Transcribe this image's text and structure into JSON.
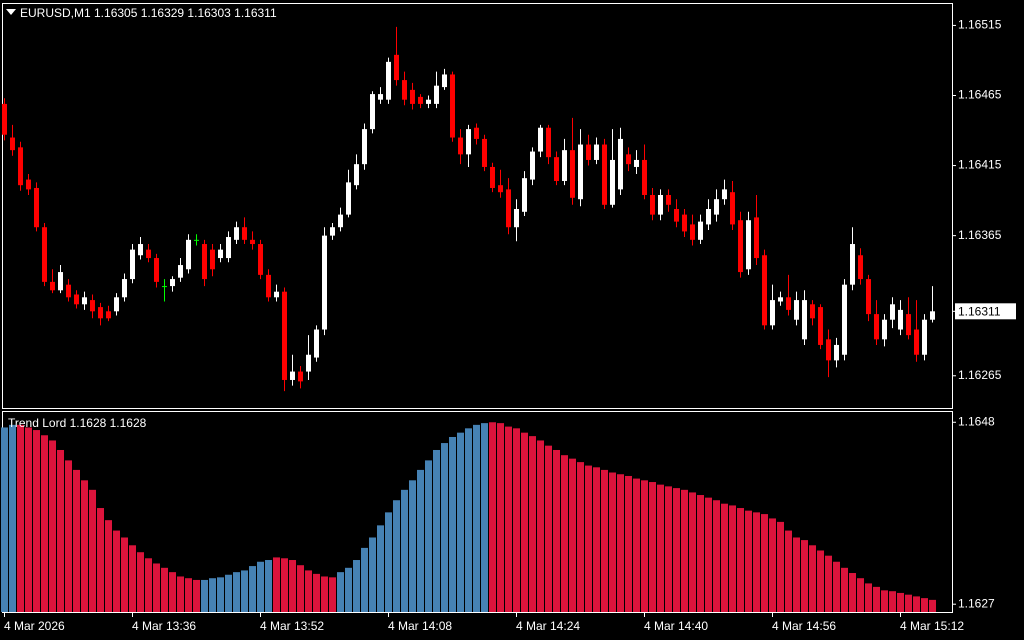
{
  "chart_data": [
    {
      "type": "candlestick",
      "title": "EURUSD,M1  1.16305 1.16329 1.16303 1.16311",
      "categories": [
        "4 Mar 2026",
        null,
        null,
        null,
        null,
        null,
        null,
        null,
        null,
        null,
        null,
        null,
        null,
        null,
        null,
        null,
        "4 Mar 13:36",
        null,
        null,
        null,
        null,
        null,
        null,
        null,
        null,
        null,
        null,
        null,
        null,
        null,
        null,
        null,
        "4 Mar 13:52",
        null,
        null,
        null,
        null,
        null,
        null,
        null,
        null,
        null,
        null,
        null,
        null,
        null,
        null,
        null,
        "4 Mar 14:08",
        null,
        null,
        null,
        null,
        null,
        null,
        null,
        null,
        null,
        null,
        null,
        null,
        null,
        null,
        null,
        "4 Mar 14:24",
        null,
        null,
        null,
        null,
        null,
        null,
        null,
        null,
        null,
        null,
        null,
        null,
        null,
        null,
        null,
        "4 Mar 14:40",
        null,
        null,
        null,
        null,
        null,
        null,
        null,
        null,
        null,
        null,
        null,
        null,
        null,
        null,
        null,
        "4 Mar 14:56",
        null,
        null,
        null,
        null,
        null,
        null,
        null,
        null,
        null,
        null,
        null,
        null,
        null,
        null,
        null,
        "4 Mar 15:12",
        null,
        null,
        null,
        null
      ],
      "open": [
        1.16459,
        1.16435,
        1.16428,
        1.16405,
        1.16399,
        1.16371,
        1.16332,
        1.16326,
        1.1633,
        1.16323,
        1.16316,
        1.16319,
        1.16314,
        1.16311,
        1.16311,
        1.16321,
        1.16334,
        1.16351,
        1.16355,
        1.16349,
        1.16329,
        1.16329,
        1.16335,
        1.16341,
        1.16362,
        1.16359,
        1.16355,
        1.16349,
        1.16349,
        1.16362,
        1.16371,
        1.16362,
        1.16359,
        1.16337,
        1.16321,
        1.16325,
        1.16262,
        1.16268,
        1.16268,
        1.16278,
        1.16298,
        1.16365,
        1.16371,
        1.1638,
        1.16401,
        1.16416,
        1.16441,
        1.16462,
        1.16462,
        1.16494,
        1.16476,
        1.16469,
        1.16464,
        1.16459,
        1.16459,
        1.16471,
        1.1648,
        1.16435,
        1.16423,
        1.16442,
        1.16434,
        1.16414,
        1.16401,
        1.16398,
        1.16371,
        1.16382,
        1.16405,
        1.16425,
        1.16442,
        1.16421,
        1.16404,
        1.16426,
        1.16391,
        1.1643,
        1.16419,
        1.1643,
        1.16387,
        1.16398,
        1.16423,
        1.16414,
        1.16419,
        1.16394,
        1.1638,
        1.16394,
        1.16384,
        1.1638,
        1.16373,
        1.16362,
        1.16373,
        1.1638,
        1.16391,
        1.16396,
        1.16376,
        1.16341,
        1.16378,
        1.16351,
        1.16301,
        1.16318,
        1.16321,
        1.16305,
        1.16291,
        1.16316,
        1.16314,
        1.16291,
        1.16276,
        1.1628,
        1.1633,
        1.16351,
        1.16334,
        1.16309,
        1.16291,
        1.16305,
        1.16298,
        1.16309,
        1.16298,
        1.1628,
        1.16305
      ],
      "high": [
        1.16463,
        1.16444,
        1.16432,
        1.16409,
        1.16403,
        1.16374,
        1.16341,
        1.16344,
        1.16334,
        1.16326,
        1.16325,
        1.16323,
        1.16317,
        1.16315,
        1.16324,
        1.16338,
        1.16359,
        1.16364,
        1.16359,
        1.16352,
        1.16334,
        1.16336,
        1.16349,
        1.16366,
        1.16366,
        1.16362,
        1.16359,
        1.16359,
        1.16368,
        1.16375,
        1.16378,
        1.16368,
        1.16362,
        1.16341,
        1.1633,
        1.16328,
        1.1628,
        1.16272,
        1.16294,
        1.16301,
        1.16371,
        1.16374,
        1.16385,
        1.16412,
        1.16423,
        1.16445,
        1.16468,
        1.16471,
        1.16492,
        1.16514,
        1.16482,
        1.16474,
        1.16466,
        1.16465,
        1.16482,
        1.16484,
        1.16482,
        1.16441,
        1.16444,
        1.16445,
        1.16437,
        1.16417,
        1.16412,
        1.16406,
        1.16391,
        1.16411,
        1.16428,
        1.16444,
        1.16444,
        1.16425,
        1.16434,
        1.16449,
        1.16441,
        1.16437,
        1.16435,
        1.16434,
        1.16441,
        1.16442,
        1.16428,
        1.16426,
        1.1643,
        1.16399,
        1.16398,
        1.16398,
        1.16391,
        1.16384,
        1.1638,
        1.1638,
        1.16391,
        1.16398,
        1.16405,
        1.16404,
        1.16382,
        1.16382,
        1.16394,
        1.16355,
        1.1633,
        1.16325,
        1.16337,
        1.16325,
        1.16326,
        1.16319,
        1.16316,
        1.16298,
        1.16292,
        1.16334,
        1.16371,
        1.16356,
        1.16337,
        1.16319,
        1.16309,
        1.16321,
        1.16319,
        1.16321,
        1.16319,
        1.16309,
        1.16329
      ],
      "low": [
        1.16433,
        1.16422,
        1.16397,
        1.16394,
        1.16368,
        1.16329,
        1.16324,
        1.16324,
        1.16318,
        1.16313,
        1.16312,
        1.16306,
        1.16301,
        1.16304,
        1.16308,
        1.16318,
        1.16331,
        1.16348,
        1.16346,
        1.16328,
        1.16318,
        1.16325,
        1.16332,
        1.16338,
        1.16358,
        1.16329,
        1.16336,
        1.16346,
        1.16346,
        1.16359,
        1.16359,
        1.16355,
        1.16334,
        1.16318,
        1.16318,
        1.16254,
        1.16258,
        1.16256,
        1.16262,
        1.16275,
        1.16294,
        1.16362,
        1.16368,
        1.16378,
        1.16398,
        1.16412,
        1.16438,
        1.16459,
        1.16459,
        1.16472,
        1.16458,
        1.16455,
        1.16456,
        1.16456,
        1.16456,
        1.16469,
        1.16432,
        1.16416,
        1.16414,
        1.1643,
        1.16411,
        1.16396,
        1.16392,
        1.16366,
        1.16361,
        1.16379,
        1.16401,
        1.16421,
        1.16416,
        1.16401,
        1.16401,
        1.16387,
        1.16386,
        1.16415,
        1.16416,
        1.16384,
        1.16385,
        1.16394,
        1.16411,
        1.16409,
        1.16391,
        1.16376,
        1.16376,
        1.16382,
        1.16371,
        1.16364,
        1.16358,
        1.16359,
        1.16369,
        1.16375,
        1.16387,
        1.16369,
        1.16335,
        1.16337,
        1.16344,
        1.16298,
        1.16298,
        1.16315,
        1.16308,
        1.16301,
        1.16287,
        1.16301,
        1.16284,
        1.16264,
        1.16271,
        1.16276,
        1.16326,
        1.1633,
        1.16304,
        1.16287,
        1.16286,
        1.16299,
        1.16294,
        1.16291,
        1.16275,
        1.16276,
        1.16303
      ],
      "close": [
        1.16437,
        1.16426,
        1.16401,
        1.16398,
        1.16371,
        1.16332,
        1.16326,
        1.16339,
        1.16321,
        1.16316,
        1.16321,
        1.16311,
        1.16306,
        1.16306,
        1.16321,
        1.16334,
        1.16355,
        1.16359,
        1.16349,
        1.16332,
        1.16329,
        1.16334,
        1.16344,
        1.16362,
        1.16362,
        1.16334,
        1.16341,
        1.16355,
        1.16364,
        1.16371,
        1.16362,
        1.16359,
        1.16337,
        1.16321,
        1.16325,
        1.16262,
        1.16268,
        1.16261,
        1.1628,
        1.16298,
        1.16365,
        1.16371,
        1.1638,
        1.16403,
        1.16416,
        1.16441,
        1.16466,
        1.16466,
        1.16489,
        1.16476,
        1.16462,
        1.16459,
        1.16459,
        1.16462,
        1.16472,
        1.1648,
        1.16435,
        1.16423,
        1.16441,
        1.16434,
        1.16414,
        1.16399,
        1.16396,
        1.16371,
        1.16384,
        1.16406,
        1.16425,
        1.16442,
        1.16421,
        1.16404,
        1.16426,
        1.16392,
        1.1643,
        1.16419,
        1.1643,
        1.16387,
        1.16419,
        1.16434,
        1.16416,
        1.16419,
        1.16394,
        1.1638,
        1.16394,
        1.16387,
        1.16375,
        1.16368,
        1.16362,
        1.16375,
        1.16384,
        1.16391,
        1.16398,
        1.16373,
        1.16339,
        1.16376,
        1.16349,
        1.16301,
        1.16319,
        1.16321,
        1.16312,
        1.16319,
        1.16319,
        1.16306,
        1.16287,
        1.16276,
        1.16287,
        1.1633,
        1.16359,
        1.16334,
        1.16309,
        1.16291,
        1.16305,
        1.16316,
        1.16312,
        1.16294,
        1.1628,
        1.16305,
        1.16311
      ],
      "up_color": "#ffffff",
      "down_color": "#ff0000",
      "doji_color": "#00ff00",
      "last_price": 1.16311,
      "ylim": [
        1.16242,
        1.16531
      ],
      "yticks": [
        1.16515,
        1.16465,
        1.16415,
        1.16365,
        1.16265
      ]
    },
    {
      "type": "histogram",
      "title": "Trend Lord 1.1628 1.1628",
      "values": [
        1.16474,
        1.16477,
        1.16477,
        1.16474,
        1.16471,
        1.16465,
        1.16459,
        1.16448,
        1.16436,
        1.16425,
        1.16413,
        1.16402,
        1.16381,
        1.16367,
        1.16355,
        1.16347,
        1.16338,
        1.1633,
        1.16323,
        1.16317,
        1.16312,
        1.16307,
        1.16302,
        1.163,
        1.16298,
        1.16298,
        1.163,
        1.16301,
        1.16304,
        1.16307,
        1.16309,
        1.16314,
        1.16319,
        1.16321,
        1.16324,
        1.16323,
        1.16321,
        1.16315,
        1.16309,
        1.16305,
        1.16302,
        1.16301,
        1.16307,
        1.16312,
        1.16321,
        1.16335,
        1.16347,
        1.16361,
        1.16376,
        1.1639,
        1.16402,
        1.16413,
        1.16425,
        1.16436,
        1.16448,
        1.16456,
        1.16463,
        1.16468,
        1.16473,
        1.16477,
        1.16479,
        1.1648,
        1.16479,
        1.16475,
        1.16473,
        1.16468,
        1.16464,
        1.16459,
        1.16453,
        1.16448,
        1.16442,
        1.16438,
        1.16434,
        1.1643,
        1.16428,
        1.16425,
        1.16422,
        1.1642,
        1.16418,
        1.16415,
        1.16413,
        1.16411,
        1.16408,
        1.16406,
        1.16404,
        1.16402,
        1.16399,
        1.16396,
        1.16393,
        1.1639,
        1.16386,
        1.16384,
        1.16381,
        1.16378,
        1.16376,
        1.16374,
        1.16369,
        1.16365,
        1.16355,
        1.16347,
        1.16344,
        1.16338,
        1.16332,
        1.16326,
        1.16319,
        1.16312,
        1.16306,
        1.163,
        1.16294,
        1.1629,
        1.16286,
        1.16285,
        1.16283,
        1.16281,
        1.16279,
        1.16277,
        1.16275
      ],
      "bar_colors": [
        "#4682b4",
        "#4682b4",
        "#dc143c",
        "#dc143c",
        "#dc143c",
        "#dc143c",
        "#dc143c",
        "#dc143c",
        "#dc143c",
        "#dc143c",
        "#dc143c",
        "#dc143c",
        "#dc143c",
        "#dc143c",
        "#dc143c",
        "#dc143c",
        "#dc143c",
        "#dc143c",
        "#dc143c",
        "#dc143c",
        "#dc143c",
        "#dc143c",
        "#dc143c",
        "#dc143c",
        "#dc143c",
        "#4682b4",
        "#4682b4",
        "#4682b4",
        "#4682b4",
        "#4682b4",
        "#4682b4",
        "#4682b4",
        "#4682b4",
        "#4682b4",
        "#dc143c",
        "#dc143c",
        "#dc143c",
        "#dc143c",
        "#dc143c",
        "#dc143c",
        "#dc143c",
        "#dc143c",
        "#4682b4",
        "#4682b4",
        "#4682b4",
        "#4682b4",
        "#4682b4",
        "#4682b4",
        "#4682b4",
        "#4682b4",
        "#4682b4",
        "#4682b4",
        "#4682b4",
        "#4682b4",
        "#4682b4",
        "#4682b4",
        "#4682b4",
        "#4682b4",
        "#4682b4",
        "#4682b4",
        "#4682b4",
        "#dc143c",
        "#dc143c",
        "#dc143c",
        "#dc143c",
        "#dc143c",
        "#dc143c",
        "#dc143c",
        "#dc143c",
        "#dc143c",
        "#dc143c",
        "#dc143c",
        "#dc143c",
        "#dc143c",
        "#dc143c",
        "#dc143c",
        "#dc143c",
        "#dc143c",
        "#dc143c",
        "#dc143c",
        "#dc143c",
        "#dc143c",
        "#dc143c",
        "#dc143c",
        "#dc143c",
        "#dc143c",
        "#dc143c",
        "#dc143c",
        "#dc143c",
        "#dc143c",
        "#dc143c",
        "#dc143c",
        "#dc143c",
        "#dc143c",
        "#dc143c",
        "#dc143c",
        "#dc143c",
        "#dc143c",
        "#dc143c",
        "#dc143c",
        "#dc143c",
        "#dc143c",
        "#dc143c",
        "#dc143c",
        "#dc143c",
        "#dc143c",
        "#dc143c",
        "#dc143c",
        "#dc143c",
        "#dc143c",
        "#dc143c",
        "#dc143c",
        "#dc143c",
        "#dc143c",
        "#dc143c",
        "#dc143c",
        "#dc143c"
      ],
      "ylim": [
        1.16261,
        1.16493
      ],
      "yticks": [
        1.1648,
        1.1627
      ]
    }
  ]
}
